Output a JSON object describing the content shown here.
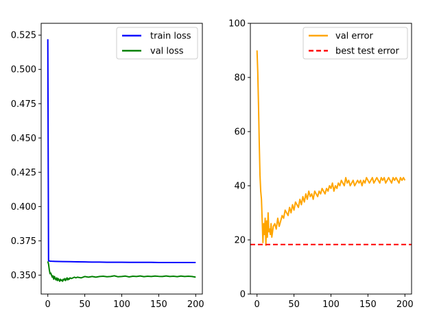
{
  "chart_data": [
    {
      "type": "line",
      "title": "",
      "xlabel": "",
      "ylabel": "",
      "xlim": [
        -9,
        209
      ],
      "ylim": [
        0.3362,
        0.5336
      ],
      "xticks": [
        0,
        50,
        100,
        150,
        200
      ],
      "yticks": [
        0.35,
        0.375,
        0.4,
        0.425,
        0.45,
        0.475,
        0.5,
        0.525
      ],
      "xtick_labels": [
        "0",
        "50",
        "100",
        "150",
        "200"
      ],
      "ytick_labels": [
        "0.350",
        "0.375",
        "0.400",
        "0.425",
        "0.450",
        "0.475",
        "0.500",
        "0.525"
      ],
      "grid": false,
      "legend_position": "top-right",
      "series": [
        {
          "name": "train loss",
          "color": "#0000ff",
          "style": "solid",
          "x": [
            0,
            1,
            2,
            3,
            5,
            10,
            20,
            30,
            40,
            50,
            60,
            70,
            80,
            90,
            100,
            110,
            120,
            130,
            140,
            150,
            160,
            170,
            180,
            190,
            200
          ],
          "y": [
            0.522,
            0.3605,
            0.3603,
            0.3602,
            0.3601,
            0.36,
            0.3599,
            0.3598,
            0.3597,
            0.3596,
            0.3595,
            0.3595,
            0.3594,
            0.3594,
            0.3594,
            0.3593,
            0.3593,
            0.3593,
            0.3593,
            0.3592,
            0.3592,
            0.3592,
            0.3592,
            0.3592,
            0.3592
          ]
        },
        {
          "name": "val loss",
          "color": "#008000",
          "style": "solid",
          "x": [
            0,
            1,
            2,
            3,
            4,
            5,
            6,
            7,
            8,
            9,
            10,
            11,
            12,
            13,
            14,
            15,
            16,
            17,
            18,
            19,
            20,
            21,
            22,
            23,
            24,
            25,
            26,
            27,
            28,
            29,
            30,
            32,
            34,
            36,
            38,
            40,
            45,
            50,
            55,
            60,
            65,
            70,
            75,
            80,
            85,
            90,
            95,
            100,
            105,
            110,
            115,
            120,
            125,
            130,
            135,
            140,
            145,
            150,
            155,
            160,
            165,
            170,
            175,
            180,
            185,
            190,
            195,
            200
          ],
          "y": [
            0.36,
            0.358,
            0.354,
            0.351,
            0.3515,
            0.35,
            0.3485,
            0.3495,
            0.347,
            0.349,
            0.3475,
            0.3465,
            0.348,
            0.346,
            0.3475,
            0.3465,
            0.3455,
            0.347,
            0.346,
            0.3465,
            0.3455,
            0.347,
            0.3465,
            0.3475,
            0.346,
            0.347,
            0.348,
            0.3465,
            0.3475,
            0.347,
            0.348,
            0.3475,
            0.348,
            0.3485,
            0.348,
            0.3485,
            0.348,
            0.349,
            0.3485,
            0.349,
            0.3485,
            0.349,
            0.3492,
            0.3488,
            0.349,
            0.3495,
            0.3488,
            0.349,
            0.3493,
            0.3487,
            0.3492,
            0.349,
            0.3494,
            0.3489,
            0.3492,
            0.349,
            0.3493,
            0.3491,
            0.349,
            0.3494,
            0.349,
            0.3492,
            0.3489,
            0.3493,
            0.349,
            0.3492,
            0.349,
            0.3485
          ]
        }
      ]
    },
    {
      "type": "line",
      "title": "",
      "xlabel": "",
      "ylabel": "",
      "xlim": [
        -9,
        209
      ],
      "ylim": [
        0,
        100
      ],
      "xticks": [
        0,
        50,
        100,
        150,
        200
      ],
      "yticks": [
        0,
        20,
        40,
        60,
        80,
        100
      ],
      "xtick_labels": [
        "0",
        "50",
        "100",
        "150",
        "200"
      ],
      "ytick_labels": [
        "0",
        "20",
        "40",
        "60",
        "80",
        "100"
      ],
      "grid": false,
      "legend_position": "top-right",
      "series": [
        {
          "name": "val error",
          "color": "#ffa500",
          "style": "solid",
          "x": [
            0,
            1,
            2,
            3,
            4,
            5,
            6,
            7,
            8,
            9,
            10,
            11,
            12,
            13,
            14,
            15,
            16,
            17,
            18,
            19,
            20,
            22,
            24,
            26,
            28,
            30,
            32,
            34,
            36,
            38,
            40,
            42,
            44,
            46,
            48,
            50,
            52,
            54,
            56,
            58,
            60,
            62,
            64,
            66,
            68,
            70,
            72,
            74,
            76,
            78,
            80,
            82,
            84,
            86,
            88,
            90,
            92,
            94,
            96,
            98,
            100,
            102,
            104,
            106,
            108,
            110,
            112,
            114,
            116,
            118,
            120,
            122,
            124,
            126,
            128,
            130,
            132,
            134,
            136,
            138,
            140,
            142,
            144,
            146,
            148,
            150,
            152,
            154,
            156,
            158,
            160,
            162,
            164,
            166,
            168,
            170,
            172,
            174,
            176,
            178,
            180,
            182,
            184,
            186,
            188,
            190,
            192,
            194,
            196,
            198,
            200
          ],
          "y": [
            90,
            82,
            70,
            56,
            44,
            38,
            35,
            27,
            19,
            26,
            22,
            28,
            18,
            27,
            21,
            30,
            23,
            24,
            22,
            26,
            21,
            25,
            26,
            24,
            28,
            25,
            27,
            29,
            28,
            31,
            30,
            29,
            32,
            30,
            33,
            31,
            34,
            33,
            32,
            35,
            33,
            36,
            34,
            37,
            35,
            38,
            36,
            37,
            35,
            38,
            37,
            36,
            38,
            37,
            39,
            38,
            37,
            39,
            38,
            40,
            39,
            41,
            38,
            40,
            39,
            41,
            40,
            42,
            41,
            40,
            43,
            41,
            42,
            40,
            41,
            42,
            40,
            41,
            42,
            41,
            42,
            40,
            42,
            41,
            43,
            42,
            41,
            42,
            43,
            41,
            42,
            43,
            42,
            41,
            43,
            42,
            43,
            41,
            42,
            43,
            42,
            41,
            43,
            42,
            43,
            42,
            41,
            43,
            42,
            43,
            42
          ]
        },
        {
          "name": "best test error",
          "color": "#ff0000",
          "style": "dashed",
          "x": [
            -9,
            209
          ],
          "y": [
            18.3,
            18.3
          ]
        }
      ]
    }
  ]
}
